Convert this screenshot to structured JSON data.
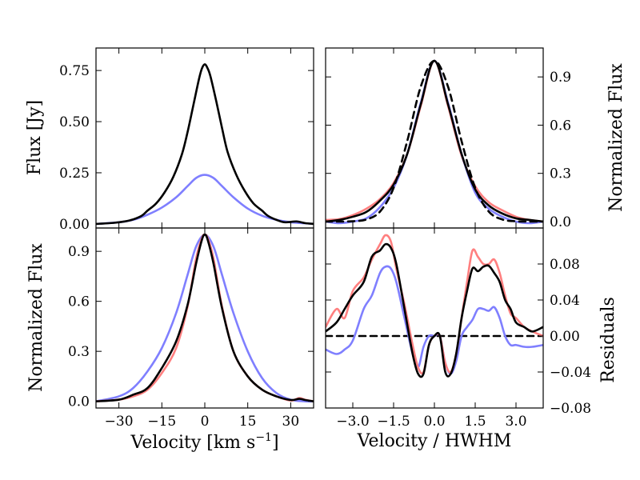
{
  "colors": {
    "black": "#000000",
    "blue": "#7f7fff",
    "red": "#ff7f7f"
  },
  "chart_data": [
    {
      "id": "p1",
      "type": "line",
      "xlim": [
        -38,
        38
      ],
      "ylim": [
        -0.02,
        0.86
      ],
      "ylabel": "Flux [Jy]",
      "ylabel_side": "left",
      "yticks": [
        0,
        0.25,
        0.5,
        0.75
      ],
      "ytick_labels": [
        "0.00",
        "0.25",
        "0.50",
        "0.75"
      ],
      "xticks": [
        -30,
        -15,
        0,
        15,
        30
      ],
      "xtick_labels": [],
      "series": [
        {
          "name": "blue",
          "color": "#7f7fff",
          "x": [
            -38,
            -30,
            -25,
            -20,
            -15,
            -10,
            -6,
            -3,
            0,
            3,
            6,
            10,
            15,
            20,
            25,
            30,
            35,
            38
          ],
          "y": [
            0.0,
            0.008,
            0.02,
            0.045,
            0.08,
            0.13,
            0.185,
            0.225,
            0.24,
            0.225,
            0.185,
            0.13,
            0.075,
            0.04,
            0.02,
            0.008,
            0.003,
            0.0
          ]
        },
        {
          "name": "black",
          "color": "#000000",
          "x": [
            -38,
            -32,
            -28,
            -25,
            -22,
            -20,
            -17,
            -14,
            -11,
            -8,
            -6,
            -4,
            -2,
            -1,
            0,
            1,
            2,
            4,
            6,
            8,
            11,
            14,
            17,
            20,
            22,
            25,
            28,
            32,
            35,
            38
          ],
          "y": [
            0.0,
            0.005,
            0.012,
            0.022,
            0.04,
            0.065,
            0.1,
            0.155,
            0.23,
            0.34,
            0.45,
            0.58,
            0.71,
            0.76,
            0.78,
            0.76,
            0.72,
            0.6,
            0.47,
            0.35,
            0.24,
            0.16,
            0.1,
            0.065,
            0.04,
            0.02,
            0.008,
            0.012,
            0.004,
            0.0
          ]
        }
      ]
    },
    {
      "id": "p2",
      "type": "line",
      "xlim": [
        -4.0,
        4.0
      ],
      "ylim": [
        -0.04,
        1.08
      ],
      "ylabel": "Normalized Flux",
      "ylabel_side": "right",
      "yticks": [
        0,
        0.3,
        0.6,
        0.9
      ],
      "ytick_labels": [
        "0.0",
        "0.3",
        "0.6",
        "0.9"
      ],
      "xticks": [
        -3.0,
        -1.5,
        0,
        1.5,
        3.0
      ],
      "xtick_labels": [],
      "series": [
        {
          "name": "red",
          "color": "#ff7f7f",
          "x": [
            -4,
            -3.5,
            -3,
            -2.5,
            -2,
            -1.5,
            -1,
            -0.5,
            0,
            0.5,
            1,
            1.5,
            2,
            2.5,
            3,
            3.5,
            4
          ],
          "y": [
            0.01,
            0.015,
            0.04,
            0.08,
            0.14,
            0.24,
            0.42,
            0.72,
            1.0,
            0.72,
            0.41,
            0.22,
            0.12,
            0.07,
            0.03,
            0.01,
            0.0
          ]
        },
        {
          "name": "blue",
          "color": "#7f7fff",
          "x": [
            -4,
            -3.5,
            -3,
            -2.5,
            -2,
            -1.5,
            -1,
            -0.5,
            0,
            0.5,
            1,
            1.5,
            2,
            2.5,
            3,
            3.5,
            4
          ],
          "y": [
            0.0,
            -0.01,
            0.0,
            0.02,
            0.09,
            0.21,
            0.42,
            0.74,
            1.0,
            0.74,
            0.42,
            0.18,
            0.08,
            0.03,
            0.0,
            -0.01,
            0.0
          ]
        },
        {
          "name": "black",
          "color": "#000000",
          "x": [
            -4,
            -3.5,
            -3,
            -2.5,
            -2,
            -1.5,
            -1,
            -0.5,
            0,
            0.5,
            1,
            1.5,
            2,
            2.5,
            3,
            3.5,
            4
          ],
          "y": [
            0.0,
            0.01,
            0.03,
            0.06,
            0.13,
            0.23,
            0.42,
            0.73,
            1.0,
            0.73,
            0.42,
            0.2,
            0.1,
            0.05,
            0.02,
            0.01,
            0.0
          ]
        },
        {
          "name": "gaussian",
          "color": "#000000",
          "dashed": true,
          "x": [
            -4,
            -3.5,
            -3,
            -2.5,
            -2,
            -1.5,
            -1,
            -0.5,
            0,
            0.5,
            1,
            1.5,
            2,
            2.5,
            3,
            3.5,
            4
          ],
          "y": [
            0.0,
            0.0,
            0.002,
            0.013,
            0.062,
            0.21,
            0.5,
            0.84,
            1.0,
            0.84,
            0.5,
            0.21,
            0.062,
            0.013,
            0.002,
            0.0,
            0.0
          ]
        }
      ]
    },
    {
      "id": "p3",
      "type": "line",
      "xlim": [
        -38,
        38
      ],
      "ylim": [
        -0.04,
        1.04
      ],
      "ylabel": "Normalized Flux",
      "ylabel_side": "left",
      "xlabel": "Velocity [km s",
      "xlabel_sup": "−1",
      "xlabel_end": "]",
      "yticks": [
        0,
        0.3,
        0.6,
        0.9
      ],
      "ytick_labels": [
        "0.0",
        "0.3",
        "0.6",
        "0.9"
      ],
      "xticks": [
        -30,
        -15,
        0,
        15,
        30
      ],
      "xtick_labels": [
        "−30",
        "−15",
        "0",
        "15",
        "30"
      ],
      "series": [
        {
          "name": "blue",
          "color": "#7f7fff",
          "x": [
            -38,
            -30,
            -25,
            -20,
            -15,
            -10,
            -6,
            -3,
            0,
            3,
            6,
            10,
            15,
            20,
            25,
            30,
            35,
            38
          ],
          "y": [
            0.0,
            0.03,
            0.08,
            0.18,
            0.32,
            0.53,
            0.76,
            0.93,
            1.0,
            0.93,
            0.76,
            0.53,
            0.3,
            0.14,
            0.05,
            0.01,
            0.0,
            0.0
          ]
        },
        {
          "name": "red",
          "color": "#ff7f7f",
          "x": [
            -38,
            -30,
            -25,
            -20,
            -15,
            -10,
            -6,
            -3,
            -1,
            0,
            1,
            3,
            6,
            10,
            15,
            20,
            25,
            30,
            33,
            35,
            38
          ],
          "y": [
            0.0,
            0.01,
            0.03,
            0.07,
            0.17,
            0.32,
            0.57,
            0.86,
            0.98,
            1.0,
            0.98,
            0.86,
            0.57,
            0.3,
            0.15,
            0.07,
            0.03,
            0.005,
            0.02,
            0.01,
            0.0
          ]
        },
        {
          "name": "black",
          "color": "#000000",
          "x": [
            -38,
            -30,
            -25,
            -20,
            -15,
            -10,
            -6,
            -3,
            -1,
            0,
            1,
            3,
            6,
            10,
            15,
            20,
            25,
            30,
            33,
            35,
            38
          ],
          "y": [
            0.0,
            0.01,
            0.04,
            0.08,
            0.2,
            0.36,
            0.58,
            0.83,
            0.97,
            1.0,
            0.97,
            0.83,
            0.56,
            0.3,
            0.15,
            0.07,
            0.03,
            0.008,
            0.015,
            0.008,
            0.0
          ]
        }
      ]
    },
    {
      "id": "p4",
      "type": "line",
      "xlim": [
        -4.0,
        4.0
      ],
      "ylim": [
        -0.08,
        0.12
      ],
      "ylabel": "Residuals",
      "ylabel_side": "right",
      "xlabel": "Velocity / HWHM",
      "yticks": [
        -0.08,
        -0.04,
        0,
        0.04,
        0.08
      ],
      "ytick_labels": [
        "−0.08",
        "−0.04",
        "0.00",
        "0.04",
        "0.08"
      ],
      "xticks": [
        -3.0,
        -1.5,
        0,
        1.5,
        3.0
      ],
      "xtick_labels": [
        "−3.0",
        "−1.5",
        "0.0",
        "1.5",
        "3.0"
      ],
      "series": [
        {
          "name": "zero",
          "color": "#000000",
          "dashed": true,
          "x": [
            -4,
            4
          ],
          "y": [
            0,
            0
          ]
        },
        {
          "name": "blue",
          "color": "#7f7fff",
          "x": [
            -4,
            -3.6,
            -3.3,
            -3,
            -2.6,
            -2.3,
            -2,
            -1.8,
            -1.6,
            -1.4,
            -1.1,
            -0.8,
            -0.6,
            -0.4,
            -0.2,
            0,
            0.2,
            0.4,
            0.6,
            0.8,
            1.0,
            1.2,
            1.4,
            1.6,
            1.8,
            2.0,
            2.2,
            2.4,
            2.6,
            2.8,
            3.0,
            3.3,
            3.6,
            4
          ],
          "y": [
            -0.015,
            -0.02,
            -0.015,
            -0.005,
            0.03,
            0.045,
            0.07,
            0.077,
            0.075,
            0.06,
            0.02,
            -0.02,
            -0.035,
            -0.012,
            0.0,
            0.0,
            0.0,
            -0.03,
            -0.042,
            -0.028,
            0.0,
            0.01,
            0.018,
            0.03,
            0.03,
            0.028,
            0.032,
            0.02,
            0.0,
            -0.01,
            -0.01,
            -0.012,
            -0.012,
            -0.01
          ]
        },
        {
          "name": "red",
          "color": "#ff7f7f",
          "x": [
            -4,
            -3.6,
            -3.3,
            -3,
            -2.6,
            -2.3,
            -2,
            -1.8,
            -1.6,
            -1.4,
            -1.1,
            -0.8,
            -0.6,
            -0.4,
            -0.2,
            0,
            0.2,
            0.4,
            0.6,
            0.8,
            1.0,
            1.2,
            1.4,
            1.6,
            1.8,
            2.0,
            2.2,
            2.4,
            2.6,
            2.8,
            3.0,
            3.3,
            3.6,
            4
          ],
          "y": [
            0.01,
            0.03,
            0.02,
            0.05,
            0.065,
            0.085,
            0.102,
            0.112,
            0.105,
            0.075,
            0.035,
            -0.01,
            -0.035,
            -0.04,
            -0.01,
            0.0,
            0.0,
            -0.03,
            -0.04,
            -0.02,
            0.02,
            0.06,
            0.095,
            0.088,
            0.08,
            0.08,
            0.085,
            0.07,
            0.045,
            0.025,
            0.02,
            0.01,
            0.005,
            0.0
          ]
        },
        {
          "name": "black",
          "color": "#000000",
          "x": [
            -4,
            -3.6,
            -3.3,
            -3,
            -2.6,
            -2.3,
            -2,
            -1.8,
            -1.6,
            -1.4,
            -1.1,
            -0.8,
            -0.6,
            -0.4,
            -0.2,
            0,
            0.2,
            0.4,
            0.6,
            0.8,
            1.0,
            1.2,
            1.4,
            1.6,
            1.8,
            2.0,
            2.2,
            2.4,
            2.6,
            2.8,
            3.0,
            3.3,
            3.6,
            4
          ],
          "y": [
            0.005,
            0.015,
            0.03,
            0.045,
            0.06,
            0.088,
            0.095,
            0.102,
            0.098,
            0.08,
            0.03,
            -0.02,
            -0.042,
            -0.042,
            -0.01,
            0.0,
            0.0,
            -0.04,
            -0.042,
            -0.02,
            0.02,
            0.05,
            0.075,
            0.072,
            0.077,
            0.078,
            0.07,
            0.06,
            0.04,
            0.03,
            0.015,
            0.01,
            0.005,
            0.01
          ]
        }
      ]
    }
  ]
}
